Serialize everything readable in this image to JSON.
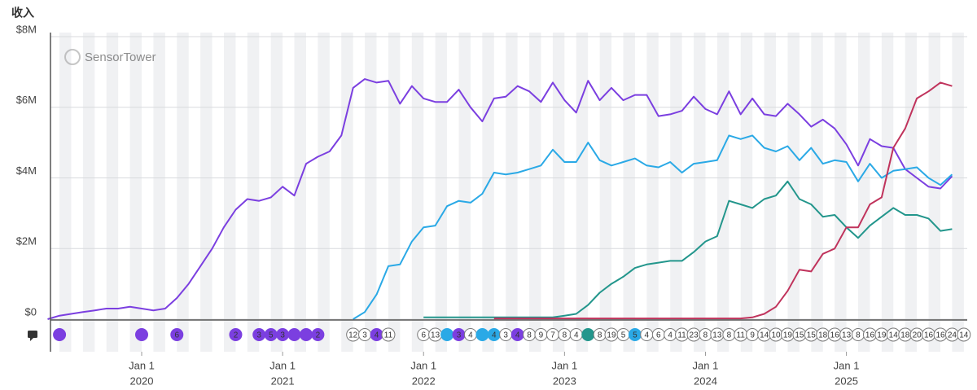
{
  "chart_data": {
    "type": "line",
    "y_label": "收入",
    "watermark": "SensorTower",
    "xlim": [
      2019.353,
      2025.84
    ],
    "xticks": [
      {
        "value": 2020,
        "label": "Jan 1",
        "year": "2020"
      },
      {
        "value": 2021,
        "label": "Jan 1",
        "year": "2021"
      },
      {
        "value": 2022,
        "label": "Jan 1",
        "year": "2022"
      },
      {
        "value": 2023,
        "label": "Jan 1",
        "year": "2023"
      },
      {
        "value": 2024,
        "label": "Jan 1",
        "year": "2024"
      },
      {
        "value": 2025,
        "label": "Jan 1",
        "year": "2025"
      }
    ],
    "ylim": [
      0,
      8
    ],
    "yticks": [
      {
        "value": 0,
        "label": "$0"
      },
      {
        "value": 2,
        "label": "$2M"
      },
      {
        "value": 4,
        "label": "$4M"
      },
      {
        "value": 6,
        "label": "$6M"
      },
      {
        "value": 8,
        "label": "$8M"
      }
    ],
    "grid": true,
    "x": [
      2019.333,
      2019.417,
      2019.5,
      2019.583,
      2019.667,
      2019.75,
      2019.833,
      2019.917,
      2020,
      2020.083,
      2020.167,
      2020.25,
      2020.333,
      2020.417,
      2020.5,
      2020.583,
      2020.667,
      2020.75,
      2020.833,
      2020.917,
      2021,
      2021.083,
      2021.167,
      2021.25,
      2021.333,
      2021.417,
      2021.5,
      2021.583,
      2021.667,
      2021.75,
      2021.833,
      2021.917,
      2022,
      2022.083,
      2022.167,
      2022.25,
      2022.333,
      2022.417,
      2022.5,
      2022.583,
      2022.667,
      2022.75,
      2022.833,
      2022.917,
      2023,
      2023.083,
      2023.167,
      2023.25,
      2023.333,
      2023.417,
      2023.5,
      2023.583,
      2023.667,
      2023.75,
      2023.833,
      2023.917,
      2024,
      2024.083,
      2024.167,
      2024.25,
      2024.333,
      2024.417,
      2024.5,
      2024.583,
      2024.667,
      2024.75,
      2024.833,
      2024.917,
      2025,
      2025.083,
      2025.167,
      2025.25,
      2025.333,
      2025.417,
      2025.5,
      2025.583,
      2025.667,
      2025.75
    ],
    "series": [
      {
        "color": "#7b3fe0",
        "values": [
          0,
          0.1,
          0.15,
          0.2,
          0.25,
          0.3,
          0.3,
          0.35,
          0.3,
          0.25,
          0.3,
          0.6,
          1.0,
          1.5,
          2.0,
          2.6,
          3.1,
          3.4,
          3.35,
          3.45,
          3.75,
          3.5,
          4.4,
          4.6,
          4.75,
          5.2,
          6.55,
          6.8,
          6.7,
          6.75,
          6.1,
          6.6,
          6.25,
          6.15,
          6.15,
          6.5,
          6.0,
          5.6,
          6.25,
          6.3,
          6.6,
          6.45,
          6.15,
          6.7,
          6.2,
          5.85,
          6.75,
          6.2,
          6.55,
          6.2,
          6.35,
          6.35,
          5.75,
          5.8,
          5.9,
          6.3,
          5.95,
          5.8,
          6.45,
          5.8,
          6.25,
          5.8,
          5.75,
          6.1,
          5.8,
          5.45,
          5.65,
          5.4,
          4.95,
          4.35,
          5.1,
          4.9,
          4.85,
          4.25,
          4.0,
          3.75,
          3.7,
          4.05
        ]
      },
      {
        "color": "#2aa9e6",
        "values": [
          null,
          null,
          null,
          null,
          null,
          null,
          null,
          null,
          null,
          null,
          null,
          null,
          null,
          null,
          null,
          null,
          null,
          null,
          null,
          null,
          null,
          null,
          null,
          null,
          null,
          null,
          0,
          0.2,
          0.7,
          1.5,
          1.55,
          2.2,
          2.6,
          2.65,
          3.2,
          3.35,
          3.3,
          3.55,
          4.15,
          4.1,
          4.15,
          4.25,
          4.35,
          4.8,
          4.45,
          4.45,
          5.0,
          4.5,
          4.35,
          4.45,
          4.55,
          4.35,
          4.3,
          4.45,
          4.15,
          4.4,
          4.45,
          4.5,
          5.2,
          5.1,
          5.2,
          4.85,
          4.75,
          4.9,
          4.5,
          4.85,
          4.4,
          4.5,
          4.45,
          3.9,
          4.4,
          4.0,
          4.2,
          4.25,
          4.3,
          4.0,
          3.8,
          4.1
        ]
      },
      {
        "color": "#23968c",
        "values": [
          null,
          null,
          null,
          null,
          null,
          null,
          null,
          null,
          null,
          null,
          null,
          null,
          null,
          null,
          null,
          null,
          null,
          null,
          null,
          null,
          null,
          null,
          null,
          null,
          null,
          null,
          null,
          null,
          null,
          null,
          null,
          null,
          0.05,
          0.05,
          0.05,
          0.05,
          0.05,
          0.05,
          0.05,
          0.05,
          0.05,
          0.05,
          0.05,
          0.05,
          0.1,
          0.15,
          0.4,
          0.75,
          1.0,
          1.2,
          1.45,
          1.55,
          1.6,
          1.65,
          1.65,
          1.9,
          2.2,
          2.35,
          3.35,
          3.25,
          3.15,
          3.4,
          3.5,
          3.9,
          3.4,
          3.25,
          2.9,
          2.95,
          2.6,
          2.3,
          2.65,
          2.9,
          3.15,
          2.95,
          2.95,
          2.85,
          2.5,
          2.55
        ]
      },
      {
        "color": "#c0335c",
        "values": [
          null,
          null,
          null,
          null,
          null,
          null,
          null,
          null,
          null,
          null,
          null,
          null,
          null,
          null,
          null,
          null,
          null,
          null,
          null,
          null,
          null,
          null,
          null,
          null,
          null,
          null,
          null,
          null,
          null,
          null,
          null,
          null,
          null,
          null,
          null,
          null,
          null,
          null,
          0.02,
          0.02,
          0.02,
          0.02,
          0.02,
          0.02,
          0.02,
          0.02,
          0.02,
          0.02,
          0.02,
          0.02,
          0.02,
          0.02,
          0.02,
          0.02,
          0.02,
          0.02,
          0.02,
          0.02,
          0.02,
          0.02,
          0.05,
          0.15,
          0.35,
          0.8,
          1.4,
          1.35,
          1.85,
          2.0,
          2.6,
          2.6,
          3.25,
          3.45,
          4.85,
          5.4,
          6.25,
          6.45,
          6.7,
          6.6
        ]
      }
    ],
    "events": [
      {
        "x": 2019.417,
        "label": null,
        "color": "#7b3fe0"
      },
      {
        "x": 2020,
        "label": null,
        "color": "#7b3fe0"
      },
      {
        "x": 2020.25,
        "label": "6",
        "color": "#7b3fe0"
      },
      {
        "x": 2020.667,
        "label": "2",
        "color": "#7b3fe0"
      },
      {
        "x": 2020.833,
        "label": "3",
        "color": "#7b3fe0"
      },
      {
        "x": 2020.917,
        "label": "5",
        "color": "#7b3fe0"
      },
      {
        "x": 2021,
        "label": "3",
        "color": "#7b3fe0"
      },
      {
        "x": 2021.083,
        "label": null,
        "color": "#7b3fe0"
      },
      {
        "x": 2021.167,
        "label": null,
        "color": "#7b3fe0"
      },
      {
        "x": 2021.25,
        "label": "2",
        "color": "#7b3fe0"
      },
      {
        "x": 2021.5,
        "label": "12",
        "color": null
      },
      {
        "x": 2021.583,
        "label": "3",
        "color": null
      },
      {
        "x": 2021.667,
        "label": "4",
        "color": "#7b3fe0"
      },
      {
        "x": 2021.75,
        "label": "11",
        "color": null
      },
      {
        "x": 2022,
        "label": "6",
        "color": null
      },
      {
        "x": 2022.083,
        "label": "13",
        "color": null
      },
      {
        "x": 2022.167,
        "label": null,
        "color": "#2aa9e6"
      },
      {
        "x": 2022.25,
        "label": "3",
        "color": "#7b3fe0"
      },
      {
        "x": 2022.333,
        "label": "4",
        "color": null
      },
      {
        "x": 2022.417,
        "label": null,
        "color": "#2aa9e6"
      },
      {
        "x": 2022.5,
        "label": "4",
        "color": "#2aa9e6"
      },
      {
        "x": 2022.583,
        "label": "3",
        "color": null
      },
      {
        "x": 2022.667,
        "label": "4",
        "color": "#7b3fe0"
      },
      {
        "x": 2022.75,
        "label": "8",
        "color": null
      },
      {
        "x": 2022.833,
        "label": "9",
        "color": null
      },
      {
        "x": 2022.917,
        "label": "7",
        "color": null
      },
      {
        "x": 2023,
        "label": "8",
        "color": null
      },
      {
        "x": 2023.083,
        "label": "4",
        "color": null
      },
      {
        "x": 2023.167,
        "label": null,
        "color": "#23968c"
      },
      {
        "x": 2023.25,
        "label": "8",
        "color": null
      },
      {
        "x": 2023.333,
        "label": "19",
        "color": null
      },
      {
        "x": 2023.417,
        "label": "5",
        "color": null
      },
      {
        "x": 2023.5,
        "label": "5",
        "color": "#2aa9e6"
      },
      {
        "x": 2023.583,
        "label": "4",
        "color": null
      },
      {
        "x": 2023.667,
        "label": "6",
        "color": null
      },
      {
        "x": 2023.75,
        "label": "4",
        "color": null
      },
      {
        "x": 2023.833,
        "label": "11",
        "color": null
      },
      {
        "x": 2023.917,
        "label": "23",
        "color": null
      },
      {
        "x": 2024,
        "label": "8",
        "color": null
      },
      {
        "x": 2024.083,
        "label": "13",
        "color": null
      },
      {
        "x": 2024.167,
        "label": "8",
        "color": null
      },
      {
        "x": 2024.25,
        "label": "11",
        "color": null
      },
      {
        "x": 2024.333,
        "label": "9",
        "color": null
      },
      {
        "x": 2024.417,
        "label": "14",
        "color": null
      },
      {
        "x": 2024.5,
        "label": "10",
        "color": null
      },
      {
        "x": 2024.583,
        "label": "19",
        "color": null
      },
      {
        "x": 2024.667,
        "label": "15",
        "color": null
      },
      {
        "x": 2024.75,
        "label": "15",
        "color": null
      },
      {
        "x": 2024.833,
        "label": "18",
        "color": null
      },
      {
        "x": 2024.917,
        "label": "16",
        "color": null
      },
      {
        "x": 2025,
        "label": "13",
        "color": null
      },
      {
        "x": 2025.083,
        "label": "8",
        "color": null
      },
      {
        "x": 2025.167,
        "label": "16",
        "color": null
      },
      {
        "x": 2025.25,
        "label": "19",
        "color": null
      },
      {
        "x": 2025.333,
        "label": "14",
        "color": null
      },
      {
        "x": 2025.417,
        "label": "18",
        "color": null
      },
      {
        "x": 2025.5,
        "label": "20",
        "color": null
      },
      {
        "x": 2025.583,
        "label": "16",
        "color": null
      },
      {
        "x": 2025.667,
        "label": "16",
        "color": null
      },
      {
        "x": 2025.75,
        "label": "24",
        "color": null
      },
      {
        "x": 2025.833,
        "label": "14",
        "color": null
      }
    ]
  }
}
